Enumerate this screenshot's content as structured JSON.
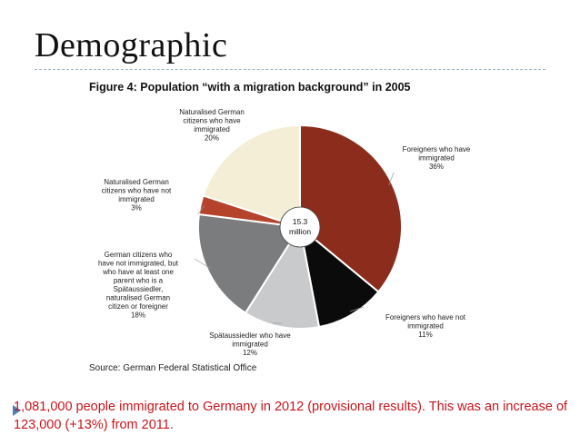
{
  "slide": {
    "title": "Demographic",
    "body": "1,081,000 people immigrated to Germany in 2012 (provisional results). This was an increase of 123,000 (+13%) from 2011."
  },
  "figure": {
    "title": "Figure 4: Population “with a migration background” in 2005",
    "source": "Source: German Federal Statistical Office",
    "center_text": [
      "15.3",
      "million"
    ]
  },
  "chart_data": {
    "type": "pie",
    "title": "Figure 4: Population “with a migration background” in 2005",
    "total_label": "15.3 million",
    "slices": [
      {
        "key": "foreigners-immigrated",
        "label": [
          "Foreigners who have",
          "immigrated",
          "36%"
        ],
        "value": 36,
        "color": "#8b2c1c"
      },
      {
        "key": "foreigners-not-immigrated",
        "label": [
          "Foreigners who have not",
          "immigrated",
          "11%"
        ],
        "value": 11,
        "color": "#0b0b0b"
      },
      {
        "key": "spataussiedler",
        "label": [
          "Spätaussiedler who have",
          "immigrated",
          "12%"
        ],
        "value": 12,
        "color": "#c9cacb"
      },
      {
        "key": "german-parent-immigrant",
        "label": [
          "German citizens who",
          "have not immigrated, but",
          "who have at least one",
          "parent who is a",
          "Spätaussiedler,",
          "naturalised German",
          "citizen or foreigner",
          "18%"
        ],
        "value": 18,
        "color": "#7b7c7d"
      },
      {
        "key": "naturalised-not-immigrated",
        "label": [
          "Naturalised German",
          "citizens who have not",
          "immigrated",
          "3%"
        ],
        "value": 3,
        "color": "#b5432c"
      },
      {
        "key": "naturalised-immigrated",
        "label": [
          "Naturalised German",
          "citizens who have",
          "immigrated",
          "20%"
        ],
        "value": 20,
        "color": "#f3eed5"
      }
    ]
  }
}
